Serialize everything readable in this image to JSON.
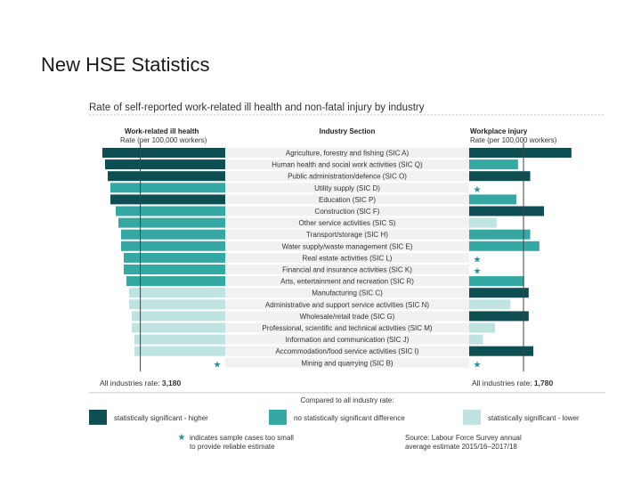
{
  "slide": {
    "title": "New HSE Statistics"
  },
  "colors": {
    "higher": "#0d4f52",
    "no_difference": "#34a9a4",
    "lower": "#bfe3e1",
    "row_band": "#f1f1f1",
    "star": "#2a8fa0"
  },
  "chart_data": {
    "type": "bar",
    "title": "Rate of self-reported work-related ill health and non-fatal injury by industry",
    "center_header": "Industry Section",
    "left": {
      "header": "Work-related ill health",
      "subheader": "Rate (per 100,000 workers)",
      "all_rate_label": "All industries rate:",
      "all_rate": "3,180",
      "all_rate_value": 3180,
      "xlim": [
        0,
        5000
      ]
    },
    "right": {
      "header": "Workplace injury",
      "subheader": "Rate (per 100,000 workers)",
      "all_rate_label": "All industries rate:",
      "all_rate": "1,780",
      "all_rate_value": 1780,
      "xlim": [
        0,
        3500
      ]
    },
    "categories": [
      "Agriculture, forestry and fishing (SIC A)",
      "Human health and social work activities (SIC Q)",
      "Public administration/defence (SIC O)",
      "Utility supply (SIC D)",
      "Education (SIC P)",
      "Construction (SIC F)",
      "Other service activities (SIC S)",
      "Transport/storage (SIC H)",
      "Water supply/waste management (SIC E)",
      "Real estate activities (SIC L)",
      "Financial and insurance activities (SIC K)",
      "Arts, entertainment and recreation (SIC R)",
      "Manufacturing (SIC C)",
      "Administrative and support service activities (SIC N)",
      "Wholesale/retail trade (SIC G)",
      "Professional, scientific and technical activities (SIC M)",
      "Information and communication (SIC J)",
      "Accommodation/food service activities (SIC I)",
      "Mining and quarrying (SIC B)"
    ],
    "series": [
      {
        "name": "Work-related ill health",
        "values": [
          4600,
          4500,
          4400,
          4300,
          4300,
          4100,
          4000,
          3900,
          3900,
          3800,
          3800,
          3700,
          3600,
          3600,
          3500,
          3500,
          3400,
          3400,
          null
        ],
        "significance": [
          "higher",
          "higher",
          "higher",
          "no_difference",
          "higher",
          "no_difference",
          "no_difference",
          "no_difference",
          "no_difference",
          "no_difference",
          "no_difference",
          "no_difference",
          "lower",
          "lower",
          "lower",
          "lower",
          "lower",
          "lower",
          "star"
        ]
      },
      {
        "name": "Workplace injury",
        "values": [
          3350,
          1600,
          2000,
          null,
          1550,
          2450,
          900,
          2000,
          2300,
          null,
          null,
          1800,
          1950,
          1350,
          1950,
          850,
          450,
          2100,
          null
        ],
        "significance": [
          "higher",
          "no_difference",
          "higher",
          "star",
          "no_difference",
          "higher",
          "lower",
          "no_difference",
          "no_difference",
          "star",
          "star",
          "no_difference",
          "higher",
          "lower",
          "higher",
          "lower",
          "lower",
          "higher",
          "star"
        ]
      }
    ],
    "compare_label": "Compared to all industry rate:",
    "legend": [
      {
        "key": "higher",
        "label": "statistically significant - higher"
      },
      {
        "key": "no_difference",
        "label": "no statistically significant difference"
      },
      {
        "key": "lower",
        "label": "statistically significant - lower"
      }
    ],
    "footnote_star": "★",
    "footnote_lines": [
      "indicates sample cases too small",
      "to provide reliable estimate"
    ],
    "source_lines": [
      "Source: Labour Force Survey annual",
      "average estimate 2015/16–2017/18"
    ]
  }
}
